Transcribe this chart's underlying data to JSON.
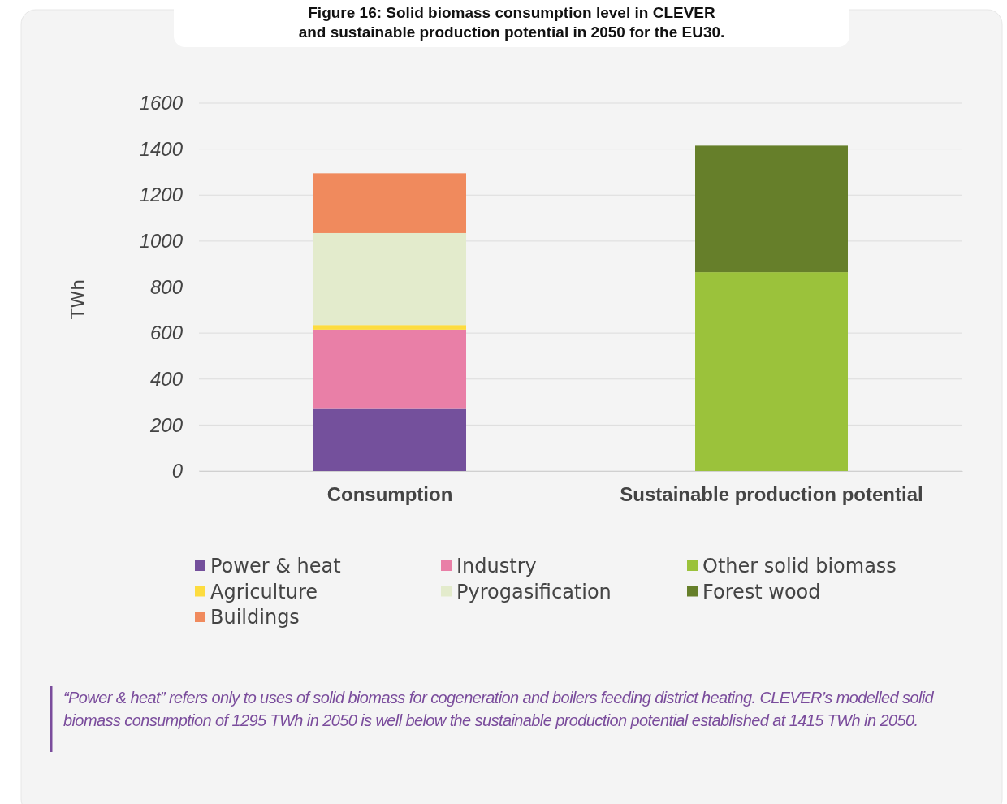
{
  "chart_data": {
    "type": "bar",
    "title": "Figure 16: Solid biomass consumption level in CLEVER\nand sustainable production potential in 2050 for the EU30.",
    "ylabel": "TWh",
    "categories": [
      "Consumption",
      "Sustainable production potential"
    ],
    "stacked": true,
    "ylim": [
      0,
      1600
    ],
    "yticks": [
      0,
      200,
      400,
      600,
      800,
      1000,
      1200,
      1400,
      1600
    ],
    "grid": "y",
    "legend": "bottom",
    "series": [
      {
        "name": "Power & heat",
        "color": "#74509c",
        "values": [
          270,
          null
        ]
      },
      {
        "name": "Industry",
        "color": "#e97fa7",
        "values": [
          345,
          null
        ]
      },
      {
        "name": "Other solid biomass",
        "color": "#9bc23b",
        "values": [
          null,
          865
        ]
      },
      {
        "name": "Agriculture",
        "color": "#fddc3f",
        "values": [
          20,
          null
        ]
      },
      {
        "name": "Pyrogasification",
        "color": "#e3ebcc",
        "values": [
          400,
          null
        ]
      },
      {
        "name": "Forest wood",
        "color": "#667f2a",
        "values": [
          null,
          550
        ]
      },
      {
        "name": "Buildings",
        "color": "#f08a5d",
        "values": [
          260,
          null
        ]
      }
    ],
    "annotations": [
      "“Power & heat” refers only to uses of solid biomass for cogeneration and boilers feeding district heating. CLEVER’s modelled solid biomass consumption of 1295 TWh in 2050 is well below the sustainable production potential established at 1415 TWh in 2050."
    ]
  }
}
